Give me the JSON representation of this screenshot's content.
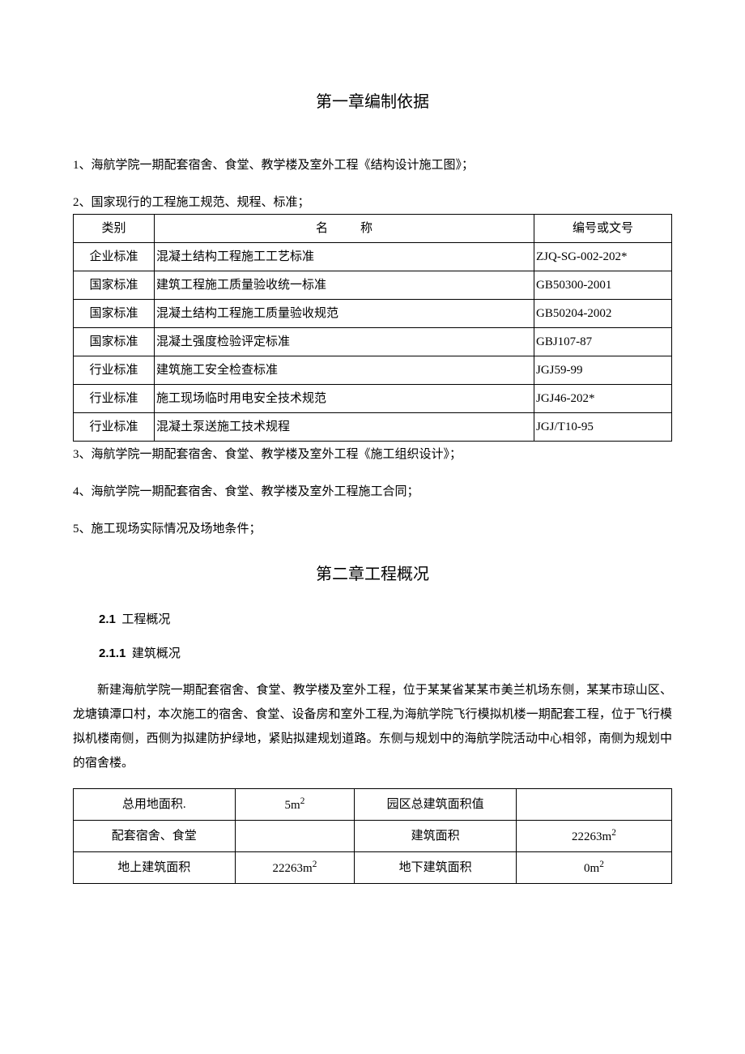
{
  "chapter1": {
    "title": "第一章编制依据",
    "items": [
      "1、海航学院一期配套宿舍、食堂、教学楼及室外工程《结构设计施工图》；",
      "2、国家现行的工程施工规范、规程、标准；",
      "3、海航学院一期配套宿舍、食堂、教学楼及室外工程《施工组织设计》；",
      "4、海航学院一期配套宿舍、食堂、教学楼及室外工程施工合同；",
      "5、施工现场实际情况及场地条件；"
    ]
  },
  "standards_table": {
    "headers": [
      "类别",
      "名称",
      "编号或文号"
    ],
    "rows": [
      [
        "企业标准",
        "混凝土结构工程施工工艺标准",
        "ZJQ-SG-002-202*"
      ],
      [
        "国家标准",
        "建筑工程施工质量验收统一标准",
        "GB50300-2001"
      ],
      [
        "国家标准",
        "混凝土结构工程施工质量验收规范",
        "GB50204-2002"
      ],
      [
        "国家标准",
        "混凝土强度检验评定标准",
        "GBJ107-87"
      ],
      [
        "行业标准",
        "建筑施工安全检查标准",
        "JGJ59-99"
      ],
      [
        "行业标准",
        "施工现场临时用电安全技术规范",
        "JGJ46-202*"
      ],
      [
        "行业标准",
        "混凝土泵送施工技术规程",
        "JGJ/T10-95"
      ]
    ]
  },
  "chapter2": {
    "title": "第二章工程概况",
    "section21_num": "2.1",
    "section21_label": "工程概况",
    "section211_num": "2.1.1",
    "section211_label": "建筑概况",
    "body": "新建海航学院一期配套宿舍、食堂、教学楼及室外工程，位于某某省某某市美兰机场东侧，某某市琼山区、龙塘镇潭口村，本次施工的宿舍、食堂、设备房和室外工程,为海航学院飞行模拟机楼一期配套工程，位于飞行模拟机楼南侧，西侧为拟建防护绿地，紧贴拟建规划道路。东侧与规划中的海航学院活动中心相邻，南侧为规划中的宿舍楼。"
  },
  "building_table": {
    "rows": [
      [
        "总用地面积.",
        "5m²",
        "园区总建筑面积值",
        ""
      ],
      [
        "配套宿舍、食堂",
        "",
        "建筑面积",
        "22263m²"
      ],
      [
        "地上建筑面积",
        "22263m²",
        "地下建筑面积",
        "0m²"
      ]
    ]
  }
}
